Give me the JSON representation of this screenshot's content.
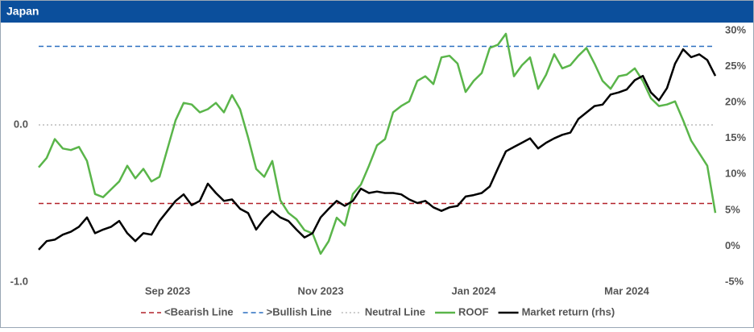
{
  "chart_data": {
    "type": "line",
    "title": "Japan",
    "categories": [
      null,
      null,
      null,
      null,
      null,
      null,
      null,
      null,
      null,
      null,
      null,
      null,
      null,
      null,
      null,
      null,
      "Sep 2023",
      null,
      null,
      null,
      null,
      null,
      null,
      null,
      null,
      null,
      null,
      null,
      null,
      null,
      null,
      null,
      null,
      null,
      null,
      "Nov 2023",
      null,
      null,
      null,
      null,
      null,
      null,
      null,
      null,
      null,
      null,
      null,
      null,
      null,
      null,
      null,
      null,
      null,
      null,
      "Jan 2024",
      null,
      null,
      null,
      null,
      null,
      null,
      null,
      null,
      null,
      null,
      null,
      null,
      null,
      null,
      null,
      null,
      null,
      null,
      "Mar 2024",
      null,
      null,
      null,
      null,
      null,
      null,
      null,
      null,
      null,
      null,
      null
    ],
    "ylim": [
      -1.0,
      0.6
    ],
    "yticks": [
      {
        "value": 0,
        "label": "0.0"
      },
      {
        "value": -1,
        "label": "-1.0"
      }
    ],
    "y2lim": [
      -5,
      30
    ],
    "y2ticks": [
      {
        "value": 30,
        "label": "30%"
      },
      {
        "value": 25,
        "label": "25%"
      },
      {
        "value": 20,
        "label": "20%"
      },
      {
        "value": 15,
        "label": "15%"
      },
      {
        "value": 10,
        "label": "10%"
      },
      {
        "value": 5,
        "label": "5%"
      },
      {
        "value": 0,
        "label": "0%"
      },
      {
        "value": -5,
        "label": "-5%"
      }
    ],
    "reference_lines": [
      {
        "name": "<Bearish Line",
        "value": -0.5,
        "color": "#b2222a",
        "dash": "6,4"
      },
      {
        "name": ">Bullish Line",
        "value": 0.5,
        "color": "#2a6fc0",
        "dash": "6,4"
      },
      {
        "name": "Neutral Line",
        "value": 0,
        "color": "#bbbbbb",
        "dash": "2,3"
      }
    ],
    "series": [
      {
        "name": "ROOF",
        "color": "#5ab54a",
        "axis": "y",
        "values": [
          -0.27,
          -0.21,
          -0.09,
          -0.15,
          -0.16,
          -0.14,
          -0.23,
          -0.44,
          -0.46,
          -0.41,
          -0.36,
          -0.26,
          -0.34,
          -0.28,
          -0.36,
          -0.33,
          -0.15,
          0.03,
          0.14,
          0.13,
          0.08,
          0.1,
          0.14,
          0.08,
          0.19,
          0.1,
          -0.08,
          -0.28,
          -0.33,
          -0.23,
          -0.48,
          -0.56,
          -0.6,
          -0.67,
          -0.69,
          -0.82,
          -0.74,
          -0.59,
          -0.64,
          -0.44,
          -0.38,
          -0.26,
          -0.13,
          -0.09,
          0.08,
          0.12,
          0.15,
          0.28,
          0.31,
          0.26,
          0.43,
          0.44,
          0.39,
          0.21,
          0.28,
          0.33,
          0.49,
          0.51,
          0.58,
          0.31,
          0.38,
          0.43,
          0.23,
          0.32,
          0.45,
          0.36,
          0.38,
          0.44,
          0.49,
          0.39,
          0.28,
          0.23,
          0.31,
          0.32,
          0.36,
          0.28,
          0.17,
          0.12,
          0.13,
          0.15,
          0.03,
          -0.1,
          -0.18,
          -0.26,
          -0.56
        ]
      },
      {
        "name": "Market return (rhs)",
        "color": "#000000",
        "axis": "y2",
        "values": [
          -0.5,
          0.7,
          0.9,
          1.6,
          2.0,
          2.7,
          4.0,
          1.8,
          2.3,
          2.7,
          3.5,
          1.8,
          0.7,
          1.8,
          1.6,
          3.5,
          4.9,
          6.3,
          7.2,
          5.7,
          6.3,
          8.7,
          7.4,
          6.3,
          6.5,
          5.2,
          4.6,
          2.3,
          3.8,
          4.9,
          4.0,
          3.5,
          2.3,
          1.2,
          1.8,
          4.0,
          5.2,
          6.3,
          5.6,
          6.3,
          8.0,
          7.4,
          7.6,
          7.4,
          7.4,
          7.2,
          6.5,
          6.0,
          6.3,
          5.4,
          4.9,
          5.4,
          5.6,
          6.9,
          7.1,
          7.4,
          8.3,
          10.8,
          13.2,
          13.8,
          14.4,
          15.0,
          13.6,
          14.4,
          15.0,
          15.5,
          15.8,
          17.7,
          18.6,
          19.5,
          19.7,
          21.1,
          21.4,
          21.8,
          23.1,
          23.7,
          21.4,
          20.3,
          22.0,
          25.4,
          27.4,
          26.3,
          26.7,
          25.9,
          23.7
        ]
      }
    ]
  }
}
